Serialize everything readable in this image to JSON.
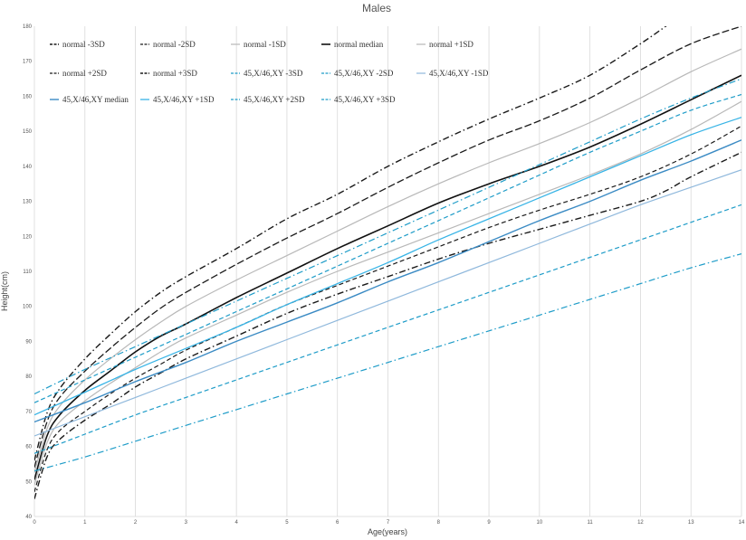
{
  "chart_data": {
    "type": "line",
    "title": "Males",
    "xlabel": "Age(years)",
    "ylabel": "Height(cm)",
    "xlim": [
      0,
      14
    ],
    "ylim": [
      40,
      180
    ],
    "xticks": [
      0,
      1,
      2,
      3,
      4,
      5,
      6,
      7,
      8,
      9,
      10,
      11,
      12,
      13,
      14
    ],
    "yticks": [
      40,
      50,
      60,
      70,
      80,
      90,
      100,
      110,
      120,
      130,
      140,
      150,
      160,
      170,
      180
    ],
    "grid": "vertical",
    "legend_position": "top",
    "series": [
      {
        "name": "normal -3SD",
        "color": "#1a1a1a",
        "dash": "dashdot",
        "width": 1.4,
        "points": [
          [
            0,
            45
          ],
          [
            0.25,
            57
          ],
          [
            0.5,
            62
          ],
          [
            1,
            67.5
          ],
          [
            1.5,
            72
          ],
          [
            2,
            77
          ],
          [
            2.5,
            81
          ],
          [
            3,
            85
          ],
          [
            4,
            91.5
          ],
          [
            5,
            98
          ],
          [
            6,
            103.5
          ],
          [
            7,
            108.5
          ],
          [
            8,
            113.5
          ],
          [
            9,
            118
          ],
          [
            10,
            122
          ],
          [
            11,
            126
          ],
          [
            12,
            130
          ],
          [
            12.5,
            133
          ],
          [
            13,
            137
          ],
          [
            14,
            144
          ]
        ]
      },
      {
        "name": "normal -2SD",
        "color": "#1a1a1a",
        "dash": "dashed",
        "width": 1.2,
        "points": [
          [
            0,
            47
          ],
          [
            0.25,
            59
          ],
          [
            0.5,
            64.5
          ],
          [
            1,
            70
          ],
          [
            1.5,
            75
          ],
          [
            2,
            79.5
          ],
          [
            2.5,
            83.5
          ],
          [
            3,
            87.5
          ],
          [
            4,
            94
          ],
          [
            5,
            100.5
          ],
          [
            6,
            106
          ],
          [
            7,
            111.5
          ],
          [
            8,
            117
          ],
          [
            9,
            122.5
          ],
          [
            10,
            127.5
          ],
          [
            11,
            132
          ],
          [
            12,
            137
          ],
          [
            13,
            143.5
          ],
          [
            14,
            151.5
          ]
        ]
      },
      {
        "name": "normal -1SD",
        "color": "#b8b8b8",
        "dash": "solid",
        "width": 1.2,
        "points": [
          [
            0,
            49
          ],
          [
            0.25,
            61
          ],
          [
            0.5,
            67
          ],
          [
            1,
            73
          ],
          [
            1.5,
            78
          ],
          [
            2,
            82.5
          ],
          [
            2.5,
            87
          ],
          [
            3,
            91
          ],
          [
            4,
            97.5
          ],
          [
            5,
            104
          ],
          [
            6,
            110
          ],
          [
            7,
            115.5
          ],
          [
            8,
            121
          ],
          [
            9,
            126.5
          ],
          [
            10,
            132
          ],
          [
            11,
            137.5
          ],
          [
            12,
            143.5
          ],
          [
            13,
            150.5
          ],
          [
            14,
            158.5
          ]
        ]
      },
      {
        "name": "normal median",
        "color": "#111111",
        "dash": "solid",
        "width": 1.6,
        "points": [
          [
            0,
            50.5
          ],
          [
            0.25,
            63
          ],
          [
            0.5,
            69
          ],
          [
            1,
            76
          ],
          [
            1.5,
            81.5
          ],
          [
            2,
            87
          ],
          [
            2.5,
            91.5
          ],
          [
            3,
            95
          ],
          [
            4,
            102.5
          ],
          [
            5,
            109.5
          ],
          [
            6,
            116.5
          ],
          [
            7,
            123
          ],
          [
            8,
            129.5
          ],
          [
            9,
            135
          ],
          [
            10,
            140
          ],
          [
            11,
            145.5
          ],
          [
            12,
            152
          ],
          [
            13,
            159
          ],
          [
            14,
            166
          ]
        ]
      },
      {
        "name": "normal +1SD",
        "color": "#b8b8b8",
        "dash": "solid",
        "width": 1.2,
        "points": [
          [
            0,
            52.5
          ],
          [
            0.25,
            65
          ],
          [
            0.5,
            71.5
          ],
          [
            1,
            79
          ],
          [
            1.5,
            85
          ],
          [
            2,
            90.5
          ],
          [
            2.5,
            95.5
          ],
          [
            3,
            100
          ],
          [
            4,
            107.5
          ],
          [
            5,
            114.5
          ],
          [
            6,
            121.5
          ],
          [
            7,
            128.5
          ],
          [
            8,
            135
          ],
          [
            9,
            141
          ],
          [
            10,
            146.5
          ],
          [
            11,
            152.5
          ],
          [
            12,
            159.5
          ],
          [
            13,
            167
          ],
          [
            14,
            173.5
          ]
        ]
      },
      {
        "name": "normal +2SD",
        "color": "#1a1a1a",
        "dash": "longdash",
        "width": 1.3,
        "points": [
          [
            0,
            54
          ],
          [
            0.25,
            67
          ],
          [
            0.5,
            74
          ],
          [
            1,
            81.5
          ],
          [
            1.5,
            88
          ],
          [
            2,
            94
          ],
          [
            2.5,
            99.5
          ],
          [
            3,
            104
          ],
          [
            4,
            112
          ],
          [
            5,
            119.5
          ],
          [
            6,
            126.5
          ],
          [
            7,
            134
          ],
          [
            8,
            141
          ],
          [
            9,
            147.5
          ],
          [
            10,
            153
          ],
          [
            11,
            159.5
          ],
          [
            12,
            167.5
          ],
          [
            13,
            175
          ],
          [
            14,
            180
          ]
        ]
      },
      {
        "name": "normal +3SD",
        "color": "#1a1a1a",
        "dash": "dashdot",
        "width": 1.4,
        "points": [
          [
            0,
            56
          ],
          [
            0.25,
            69.5
          ],
          [
            0.5,
            76.5
          ],
          [
            1,
            85
          ],
          [
            1.5,
            92
          ],
          [
            2,
            98.5
          ],
          [
            2.5,
            104
          ],
          [
            3,
            108.5
          ],
          [
            4,
            116.5
          ],
          [
            5,
            125
          ],
          [
            6,
            132
          ],
          [
            7,
            140
          ],
          [
            8,
            147
          ],
          [
            9,
            153.5
          ],
          [
            10,
            159.5
          ],
          [
            11,
            166
          ],
          [
            12,
            175
          ],
          [
            12.6,
            181
          ]
        ]
      },
      {
        "name": "45,X/46,XY -3SD",
        "color": "#1e9cc8",
        "dash": "dashdot",
        "width": 1.2,
        "points": [
          [
            0,
            53
          ],
          [
            1,
            57
          ],
          [
            2,
            61.5
          ],
          [
            3,
            66
          ],
          [
            4,
            70.5
          ],
          [
            5,
            75
          ],
          [
            6,
            79.5
          ],
          [
            7,
            84
          ],
          [
            8,
            88.5
          ],
          [
            9,
            93
          ],
          [
            10,
            97.5
          ],
          [
            11,
            102
          ],
          [
            12,
            106.5
          ],
          [
            13,
            111
          ],
          [
            14,
            115
          ]
        ]
      },
      {
        "name": "45,X/46,XY -2SD",
        "color": "#1e9cc8",
        "dash": "dashed",
        "width": 1.2,
        "points": [
          [
            0,
            58
          ],
          [
            1,
            63.5
          ],
          [
            2,
            69
          ],
          [
            3,
            74
          ],
          [
            4,
            79
          ],
          [
            5,
            84
          ],
          [
            6,
            89
          ],
          [
            7,
            94
          ],
          [
            8,
            99
          ],
          [
            9,
            104
          ],
          [
            10,
            109
          ],
          [
            11,
            114
          ],
          [
            12,
            119
          ],
          [
            13,
            124
          ],
          [
            14,
            129
          ]
        ]
      },
      {
        "name": "45,X/46,XY -1SD",
        "color": "#8fb8dc",
        "dash": "solid",
        "width": 1.2,
        "points": [
          [
            0,
            63
          ],
          [
            1,
            68.5
          ],
          [
            2,
            74
          ],
          [
            3,
            79.5
          ],
          [
            4,
            85
          ],
          [
            5,
            90.5
          ],
          [
            6,
            96
          ],
          [
            7,
            101.5
          ],
          [
            8,
            107
          ],
          [
            9,
            112.5
          ],
          [
            10,
            118
          ],
          [
            11,
            123.5
          ],
          [
            12,
            129
          ],
          [
            13,
            134
          ],
          [
            14,
            139
          ]
        ]
      },
      {
        "name": "45,X/46,XY median",
        "color": "#3b8bc4",
        "dash": "solid",
        "width": 1.4,
        "points": [
          [
            0,
            67
          ],
          [
            1,
            72.5
          ],
          [
            2,
            78.5
          ],
          [
            3,
            84
          ],
          [
            4,
            90
          ],
          [
            5,
            95.5
          ],
          [
            6,
            101
          ],
          [
            7,
            107
          ],
          [
            8,
            112.5
          ],
          [
            9,
            118.5
          ],
          [
            10,
            124.5
          ],
          [
            11,
            130
          ],
          [
            12,
            136
          ],
          [
            13,
            141.5
          ],
          [
            14,
            147.5
          ]
        ]
      },
      {
        "name": "45,X/46,XY +1SD",
        "color": "#38b4e6",
        "dash": "solid",
        "width": 1.3,
        "points": [
          [
            0,
            69
          ],
          [
            1,
            75.5
          ],
          [
            2,
            82
          ],
          [
            3,
            88
          ],
          [
            4,
            94
          ],
          [
            5,
            100.5
          ],
          [
            6,
            106.5
          ],
          [
            7,
            112.5
          ],
          [
            8,
            119
          ],
          [
            9,
            125
          ],
          [
            10,
            131
          ],
          [
            11,
            137
          ],
          [
            12,
            143
          ],
          [
            13,
            149
          ],
          [
            14,
            154
          ]
        ]
      },
      {
        "name": "45,X/46,XY +2SD",
        "color": "#1e9cc8",
        "dash": "dashed",
        "width": 1.2,
        "points": [
          [
            0,
            72.5
          ],
          [
            1,
            79
          ],
          [
            2,
            85.5
          ],
          [
            3,
            92
          ],
          [
            4,
            98.5
          ],
          [
            5,
            105
          ],
          [
            6,
            111.5
          ],
          [
            7,
            118
          ],
          [
            8,
            124.5
          ],
          [
            9,
            131
          ],
          [
            10,
            137.5
          ],
          [
            11,
            144
          ],
          [
            12,
            150
          ],
          [
            13,
            156
          ],
          [
            14,
            160.5
          ]
        ]
      },
      {
        "name": "45,X/46,XY +3SD",
        "color": "#1e9cc8",
        "dash": "dashdot",
        "width": 1.2,
        "points": [
          [
            0,
            75
          ],
          [
            1,
            82
          ],
          [
            2,
            88.5
          ],
          [
            3,
            95
          ],
          [
            4,
            101.5
          ],
          [
            5,
            108
          ],
          [
            6,
            114.5
          ],
          [
            7,
            121
          ],
          [
            8,
            127.5
          ],
          [
            9,
            134
          ],
          [
            10,
            140.5
          ],
          [
            11,
            147
          ],
          [
            12,
            153.5
          ],
          [
            13,
            159.5
          ],
          [
            14,
            165
          ]
        ]
      }
    ]
  }
}
